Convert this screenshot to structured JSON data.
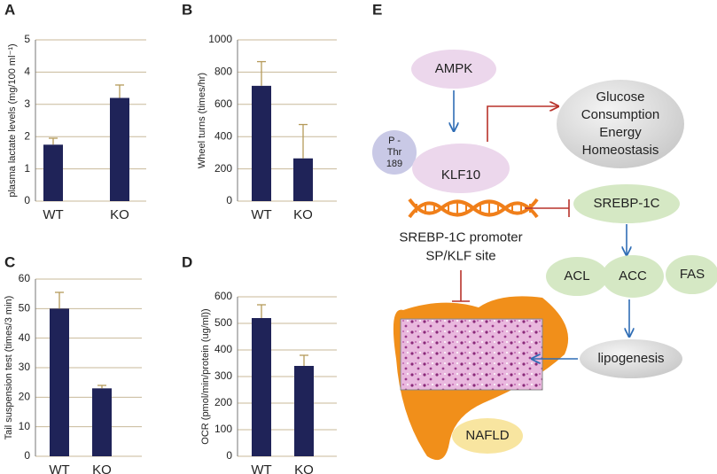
{
  "chart_data": [
    {
      "type": "bar",
      "label": "A",
      "ylabel": "plasma lactate levels (mg/100 ml⁻¹)",
      "categories": [
        "WT",
        "KO"
      ],
      "values": [
        1.75,
        3.2
      ],
      "errors": [
        0.2,
        0.4
      ],
      "color": "#1f2358",
      "error_color": "#b59a5a",
      "ylim": [
        0,
        5
      ],
      "yticks": [
        0,
        1,
        2,
        3,
        4,
        5
      ],
      "grid": true
    },
    {
      "type": "bar",
      "label": "B",
      "ylabel": "Wheel turns (times/hr)",
      "categories": [
        "WT",
        "KO"
      ],
      "values": [
        715,
        265
      ],
      "errors": [
        150,
        210
      ],
      "color": "#1f2358",
      "error_color": "#b59a5a",
      "ylim": [
        0,
        1000
      ],
      "yticks": [
        0,
        200,
        400,
        600,
        800,
        1000
      ],
      "grid": true
    },
    {
      "type": "bar",
      "label": "C",
      "ylabel": "Tail suspension test (times/3 min)",
      "categories": [
        "WT",
        "KO"
      ],
      "values": [
        50,
        23
      ],
      "errors": [
        5.5,
        1
      ],
      "color": "#1f2358",
      "error_color": "#b59a5a",
      "ylim": [
        0,
        60
      ],
      "yticks": [
        0,
        10,
        20,
        30,
        40,
        50,
        60
      ],
      "grid": true
    },
    {
      "type": "bar",
      "label": "D",
      "ylabel": "OCR (pmol/min/protein (ug/ml))",
      "categories": [
        "WT",
        "KO"
      ],
      "values": [
        520,
        340
      ],
      "errors": [
        50,
        40
      ],
      "color": "#1f2358",
      "error_color": "#b59a5a",
      "ylim": [
        0,
        600
      ],
      "yticks": [
        0,
        100,
        200,
        300,
        400,
        500,
        600
      ],
      "grid": true
    }
  ],
  "diagram": {
    "label": "E",
    "nodes": [
      {
        "lines": [
          "AMPK"
        ]
      },
      {
        "lines": [
          "Glucose",
          "Consumption",
          "Energy",
          "Homeostasis"
        ]
      },
      {
        "lines": [
          "P -",
          "Thr",
          "189"
        ]
      },
      {
        "lines": [
          "KLF10"
        ]
      },
      {
        "lines": [
          "SREBP-1C promoter",
          "SP/KLF site"
        ]
      },
      {
        "lines": [
          "SREBP-1C"
        ]
      },
      {
        "lines": [
          "ACL"
        ]
      },
      {
        "lines": [
          "ACC"
        ]
      },
      {
        "lines": [
          "FAS"
        ]
      },
      {
        "lines": [
          "lipogenesis"
        ]
      },
      {
        "lines": [
          "NAFLD"
        ]
      }
    ]
  }
}
